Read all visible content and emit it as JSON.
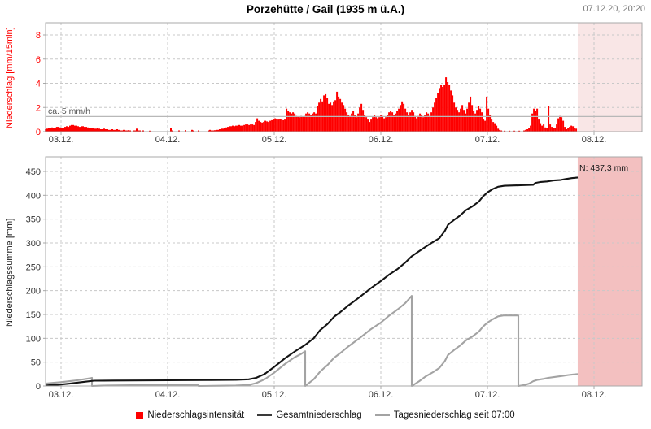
{
  "header": {
    "title": "Porzehütte / Gail (1935 m ü.A.)",
    "timestamp": "07.12.20, 20:20"
  },
  "colors": {
    "bar_red": "#fe0000",
    "axis_red": "#ff0000",
    "total_line": "#141414",
    "daily_line": "#a3a3a3",
    "grid": "#c8c8c8",
    "frame": "#a8a8a8",
    "threshold_line": "#b8b8b8",
    "future_top": "#f9e6e6",
    "future_bottom": "#f3c0c0",
    "tick_text": "#333333"
  },
  "legend": {
    "items": [
      {
        "label": "Niederschlagsintensität",
        "swatch": "square",
        "color": "#fe0000"
      },
      {
        "label": "Gesamtniederschlag",
        "swatch": "line",
        "color": "#3a3a3a"
      },
      {
        "label": "Tagesniederschlag seit 07:00",
        "swatch": "line",
        "color": "#a3a3a3"
      }
    ]
  },
  "chart_data": [
    {
      "type": "bar",
      "ylabel": "Niederschlag [mm/15min]",
      "ylim": [
        0,
        9
      ],
      "yticks": [
        0,
        2,
        4,
        6,
        8
      ],
      "x_day_ticks": [
        "03.12.",
        "04.12.",
        "05.12.",
        "06.12.",
        "07.12.",
        "08.12."
      ],
      "xlim_days": [
        -0.145,
        5.45
      ],
      "future_start_day": 4.847,
      "threshold": {
        "label": "ca. 5 mm/h",
        "value_mm_per_15min": 1.25
      },
      "bars": {
        "x0_day": -0.145,
        "dx_day": 0.01527,
        "values": [
          0.2,
          0.25,
          0.3,
          0.3,
          0.35,
          0.3,
          0.35,
          0.4,
          0.4,
          0.35,
          0.3,
          0.3,
          0.4,
          0.45,
          0.4,
          0.5,
          0.55,
          0.55,
          0.5,
          0.5,
          0.45,
          0.4,
          0.45,
          0.45,
          0.4,
          0.4,
          0.35,
          0.3,
          0.3,
          0.3,
          0.25,
          0.25,
          0.3,
          0.25,
          0.2,
          0.2,
          0.25,
          0.2,
          0.2,
          0.15,
          0.15,
          0.2,
          0.15,
          0.15,
          0.2,
          0.15,
          0.1,
          0.1,
          0.15,
          0.1,
          0.1,
          0.12,
          0.1,
          0,
          0.1,
          0.1,
          0.25,
          0.1,
          0.1,
          0,
          0.1,
          0,
          0,
          0,
          0.08,
          0,
          0,
          0,
          0,
          0,
          0,
          0,
          0,
          0,
          0,
          0,
          0,
          0.3,
          0.1,
          0,
          0,
          0,
          0.1,
          0,
          0,
          0,
          0.12,
          0,
          0,
          0,
          0.15,
          0.1,
          0,
          0,
          0.1,
          0,
          0,
          0,
          0,
          0,
          0.1,
          0.15,
          0.1,
          0.1,
          0.12,
          0.15,
          0.15,
          0.2,
          0.25,
          0.25,
          0.3,
          0.35,
          0.4,
          0.45,
          0.45,
          0.5,
          0.45,
          0.5,
          0.5,
          0.55,
          0.5,
          0.5,
          0.55,
          0.6,
          0.6,
          0.55,
          0.6,
          0.6,
          0.55,
          0.8,
          1.1,
          0.9,
          0.8,
          0.75,
          0.8,
          0.9,
          0.85,
          0.8,
          0.9,
          0.95,
          1.0,
          1.1,
          1.05,
          1.0,
          1.05,
          1.0,
          0.95,
          1.0,
          1.9,
          1.7,
          1.6,
          1.5,
          1.6,
          1.5,
          1.3,
          1.25,
          1.2,
          1.3,
          1.25,
          1.3,
          1.5,
          1.6,
          1.5,
          1.4,
          1.5,
          1.6,
          1.5,
          2.1,
          2.4,
          2.7,
          2.5,
          3.0,
          3.1,
          2.8,
          2.3,
          2.4,
          2.2,
          2.5,
          2.6,
          3.3,
          2.9,
          2.7,
          2.4,
          2.2,
          1.9,
          1.6,
          1.4,
          1.3,
          1.5,
          1.7,
          1.4,
          1.2,
          1.5,
          2.0,
          2.3,
          1.8,
          1.4,
          1.2,
          1.0,
          0.8,
          1.0,
          1.2,
          1.4,
          1.2,
          1.1,
          1.2,
          1.4,
          1.3,
          1.1,
          1.2,
          1.4,
          1.6,
          1.7,
          1.6,
          1.4,
          1.5,
          1.7,
          1.9,
          2.2,
          2.5,
          2.3,
          1.9,
          1.6,
          1.4,
          1.6,
          1.8,
          1.6,
          1.3,
          1.1,
          1.3,
          1.5,
          1.4,
          1.2,
          1.4,
          1.6,
          1.5,
          1.3,
          1.6,
          2.0,
          2.4,
          2.8,
          3.2,
          3.6,
          3.9,
          3.7,
          3.9,
          4.5,
          4.1,
          3.9,
          3.4,
          3.0,
          2.4,
          2.0,
          1.8,
          1.6,
          1.9,
          2.2,
          1.8,
          1.5,
          1.9,
          2.4,
          2.9,
          2.2,
          1.7,
          1.5,
          1.8,
          2.1,
          1.9,
          1.6,
          1.0,
          0.9,
          2.9,
          1.9,
          1.4,
          1.0,
          0.8,
          0.7,
          0.5,
          0.25,
          0.15,
          0.1,
          0,
          0.08,
          0,
          0,
          0.08,
          0,
          0,
          0.08,
          0,
          0,
          0.08,
          0,
          0,
          0.1,
          0.15,
          0.2,
          0.3,
          0.5,
          1.5,
          1.9,
          1.7,
          1.9,
          1.0,
          0.7,
          0.5,
          0.6,
          0.35,
          0.3,
          2.1,
          0.6,
          0.4,
          0.3,
          0.3,
          0.6,
          1.1,
          1.3,
          1.2,
          0.9,
          0.4,
          0.2,
          0.3,
          0.4,
          0.5,
          0.45,
          0.3,
          0.25
        ]
      }
    },
    {
      "type": "line",
      "ylabel": "Niederschlagssumme [mm]",
      "ylim": [
        0,
        480
      ],
      "yticks": [
        0,
        50,
        100,
        150,
        200,
        250,
        300,
        350,
        400,
        450
      ],
      "x_day_ticks": [
        "03.12.",
        "04.12.",
        "05.12.",
        "06.12.",
        "07.12.",
        "08.12."
      ],
      "xlim_days": [
        -0.145,
        5.45
      ],
      "future_start_day": 4.847,
      "annotation": {
        "label": "N: 437,3 mm",
        "value": 437.3
      },
      "series": [
        {
          "name": "Gesamtniederschlag",
          "points": [
            [
              -0.145,
              1
            ],
            [
              -0.08,
              2
            ],
            [
              0,
              3
            ],
            [
              0.08,
              5
            ],
            [
              0.15,
              7
            ],
            [
              0.23,
              9
            ],
            [
              0.31,
              11
            ],
            [
              0.5,
              11.5
            ],
            [
              1.0,
              12
            ],
            [
              1.41,
              12.5
            ],
            [
              1.64,
              13
            ],
            [
              1.76,
              14
            ],
            [
              1.83,
              17
            ],
            [
              1.91,
              25
            ],
            [
              2.0,
              40
            ],
            [
              2.1,
              58
            ],
            [
              2.19,
              72
            ],
            [
              2.29,
              86
            ],
            [
              2.37,
              100
            ],
            [
              2.43,
              117
            ],
            [
              2.5,
              130
            ],
            [
              2.56,
              145
            ],
            [
              2.62,
              155
            ],
            [
              2.69,
              168
            ],
            [
              2.75,
              178
            ],
            [
              2.81,
              188
            ],
            [
              2.9,
              204
            ],
            [
              3.0,
              220
            ],
            [
              3.08,
              234
            ],
            [
              3.16,
              246
            ],
            [
              3.23,
              259
            ],
            [
              3.29,
              272
            ],
            [
              3.36,
              283
            ],
            [
              3.42,
              292
            ],
            [
              3.49,
              302
            ],
            [
              3.55,
              310
            ],
            [
              3.6,
              325
            ],
            [
              3.63,
              338
            ],
            [
              3.69,
              349
            ],
            [
              3.74,
              357
            ],
            [
              3.8,
              369
            ],
            [
              3.86,
              377
            ],
            [
              3.92,
              387
            ],
            [
              3.96,
              398
            ],
            [
              4.0,
              406
            ],
            [
              4.05,
              413
            ],
            [
              4.1,
              418
            ],
            [
              4.16,
              420
            ],
            [
              4.31,
              421
            ],
            [
              4.43,
              422
            ],
            [
              4.45,
              426
            ],
            [
              4.5,
              428
            ],
            [
              4.56,
              429
            ],
            [
              4.62,
              431
            ],
            [
              4.68,
              432
            ],
            [
              4.73,
              434
            ],
            [
              4.79,
              436
            ],
            [
              4.847,
              437.3
            ]
          ]
        },
        {
          "name": "Tagesniederschlag seit 07:00",
          "points": [
            [
              -0.145,
              5
            ],
            [
              -0.08,
              6.5
            ],
            [
              0,
              8
            ],
            [
              0.08,
              10
            ],
            [
              0.15,
              12
            ],
            [
              0.21,
              14
            ],
            [
              0.27,
              16
            ],
            [
              0.29,
              17
            ],
            [
              0.29,
              0
            ],
            [
              0.42,
              1
            ],
            [
              0.65,
              1.5
            ],
            [
              1.0,
              2
            ],
            [
              1.24,
              2.2
            ],
            [
              1.29,
              2.3
            ],
            [
              1.29,
              0
            ],
            [
              1.49,
              0.5
            ],
            [
              1.64,
              1
            ],
            [
              1.76,
              2
            ],
            [
              1.83,
              6
            ],
            [
              1.91,
              14
            ],
            [
              2.0,
              28
            ],
            [
              2.1,
              46
            ],
            [
              2.19,
              60
            ],
            [
              2.25,
              67
            ],
            [
              2.29,
              73
            ],
            [
              2.29,
              0
            ],
            [
              2.37,
              14
            ],
            [
              2.43,
              30
            ],
            [
              2.5,
              44
            ],
            [
              2.56,
              59
            ],
            [
              2.62,
              69
            ],
            [
              2.69,
              82
            ],
            [
              2.75,
              92
            ],
            [
              2.81,
              102
            ],
            [
              2.9,
              118
            ],
            [
              3.0,
              133
            ],
            [
              3.08,
              148
            ],
            [
              3.16,
              161
            ],
            [
              3.23,
              174
            ],
            [
              3.29,
              189
            ],
            [
              3.29,
              0
            ],
            [
              3.36,
              10
            ],
            [
              3.42,
              20
            ],
            [
              3.49,
              29
            ],
            [
              3.55,
              38
            ],
            [
              3.6,
              52
            ],
            [
              3.63,
              65
            ],
            [
              3.69,
              76
            ],
            [
              3.74,
              84
            ],
            [
              3.8,
              96
            ],
            [
              3.86,
              104
            ],
            [
              3.92,
              114
            ],
            [
              3.96,
              125
            ],
            [
              4.0,
              133
            ],
            [
              4.05,
              140
            ],
            [
              4.1,
              146
            ],
            [
              4.15,
              148
            ],
            [
              4.29,
              148
            ],
            [
              4.29,
              0
            ],
            [
              4.35,
              2
            ],
            [
              4.39,
              5
            ],
            [
              4.43,
              10
            ],
            [
              4.47,
              13
            ],
            [
              4.53,
              15
            ],
            [
              4.57,
              17
            ],
            [
              4.63,
              19
            ],
            [
              4.7,
              21
            ],
            [
              4.76,
              23
            ],
            [
              4.8,
              24
            ],
            [
              4.847,
              25
            ]
          ]
        }
      ]
    }
  ]
}
